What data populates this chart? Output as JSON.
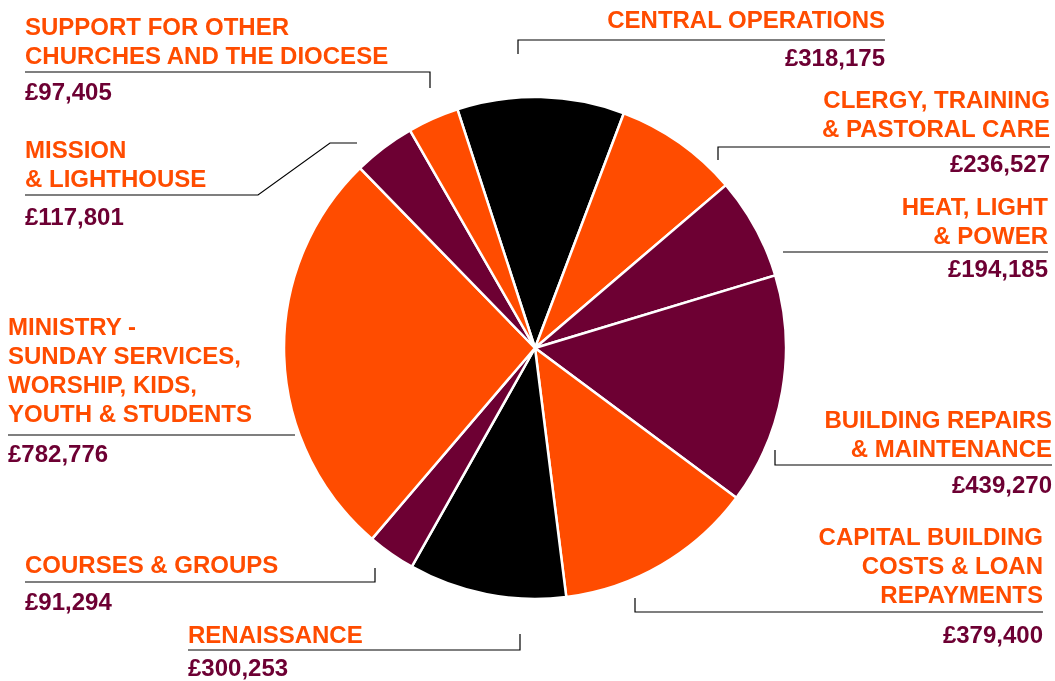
{
  "chart_data": {
    "type": "pie",
    "categories": [
      "CENTRAL OPERATIONS",
      "CLERGY, TRAINING\n& PASTORAL CARE",
      "HEAT, LIGHT\n& POWER",
      "BUILDING REPAIRS\n& MAINTENANCE",
      "CAPITAL BUILDING\nCOSTS & LOAN\nREPAYMENTS",
      "RENAISSANCE",
      "COURSES & GROUPS",
      "MINISTRY -\nSUNDAY SERVICES,\nWORSHIP, KIDS,\nYOUTH & STUDENTS",
      "MISSION\n& LIGHTHOUSE",
      "SUPPORT FOR OTHER\nCHURCHES AND THE DIOCESE"
    ],
    "values": [
      318175,
      236527,
      194185,
      439270,
      379400,
      300253,
      91294,
      782776,
      117801,
      97405
    ],
    "value_labels": [
      "£318,175",
      "£236,527",
      "£194,185",
      "£439,270",
      "£379,400",
      "£300,253",
      "£91,294",
      "£782,776",
      "£117,801",
      "£97,405"
    ],
    "colors": [
      "#000000",
      "#ff4c00",
      "#6d0033",
      "#6d0033",
      "#ff4c00",
      "#000000",
      "#6d0033",
      "#ff4c00",
      "#6d0033",
      "#ff4c00"
    ]
  }
}
